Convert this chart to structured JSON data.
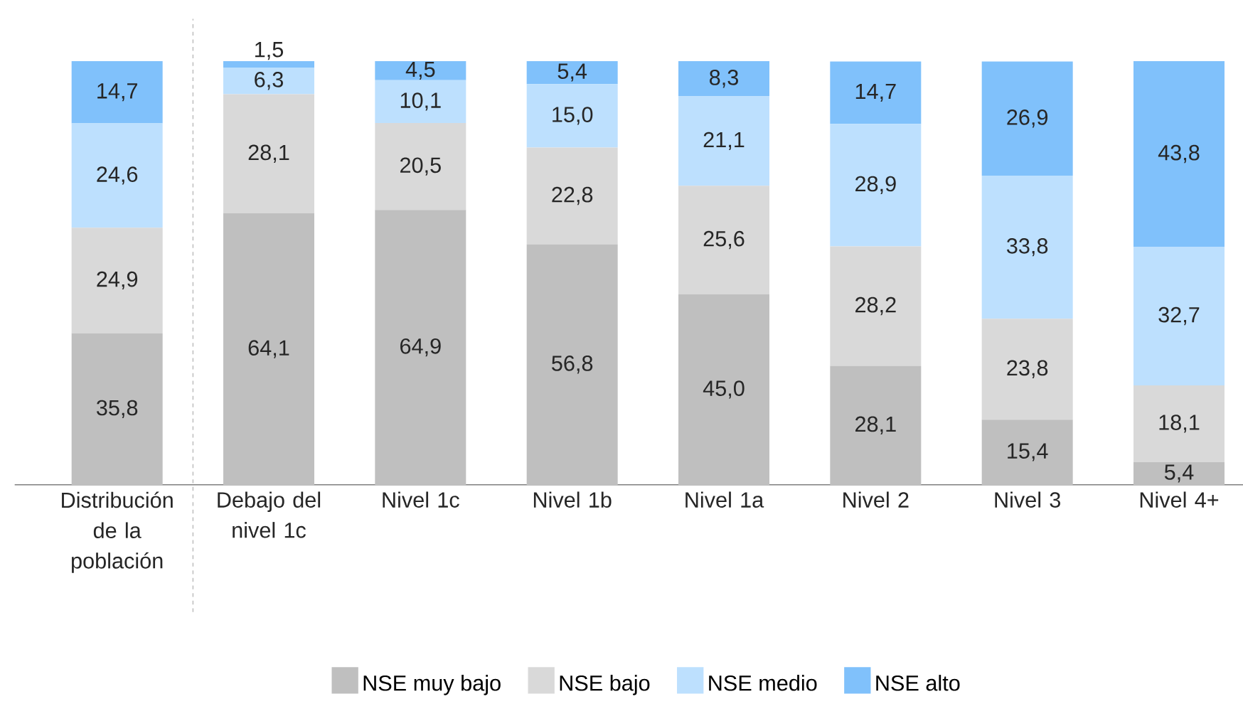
{
  "chart_data": {
    "type": "bar",
    "stacked": true,
    "legend": "bottom",
    "ylim": [
      0,
      100
    ],
    "tick_labels": "x",
    "categories": [
      "Distribución de la población",
      "Debajo del nivel 1c",
      "Nivel 1c",
      "Nivel 1b",
      "Nivel 1a",
      "Nivel 2",
      "Nivel 3",
      "Nivel 4+"
    ],
    "series": [
      {
        "name": "NSE muy bajo",
        "color": "#bfbfbf",
        "values": [
          35.8,
          64.1,
          64.9,
          56.8,
          45.0,
          28.1,
          15.4,
          5.4
        ],
        "value_labels": [
          "35,8",
          "64,1",
          "64,9",
          "56,8",
          "45,0",
          "28,1",
          "15,4",
          "5,4"
        ]
      },
      {
        "name": "NSE bajo",
        "color": "#d9d9d9",
        "values": [
          24.9,
          28.1,
          20.5,
          22.8,
          25.6,
          28.2,
          23.8,
          18.1
        ],
        "value_labels": [
          "24,9",
          "28,1",
          "20,5",
          "22,8",
          "25,6",
          "28,2",
          "23,8",
          "18,1"
        ]
      },
      {
        "name": "NSE medio",
        "color": "#bde0fe",
        "values": [
          24.6,
          6.3,
          10.1,
          15.0,
          21.1,
          28.9,
          33.8,
          32.7
        ],
        "value_labels": [
          "24,6",
          "6,3",
          "10,1",
          "15,0",
          "21,1",
          "28,9",
          "33,8",
          "32,7"
        ]
      },
      {
        "name": "NSE alto",
        "color": "#80c1fb",
        "values": [
          14.7,
          1.5,
          4.5,
          5.4,
          8.3,
          14.7,
          26.9,
          43.8
        ],
        "value_labels": [
          "14,7",
          "1,5",
          "4,5",
          "5,4",
          "8,3",
          "14,7",
          "26,9",
          "43,8"
        ]
      }
    ]
  }
}
